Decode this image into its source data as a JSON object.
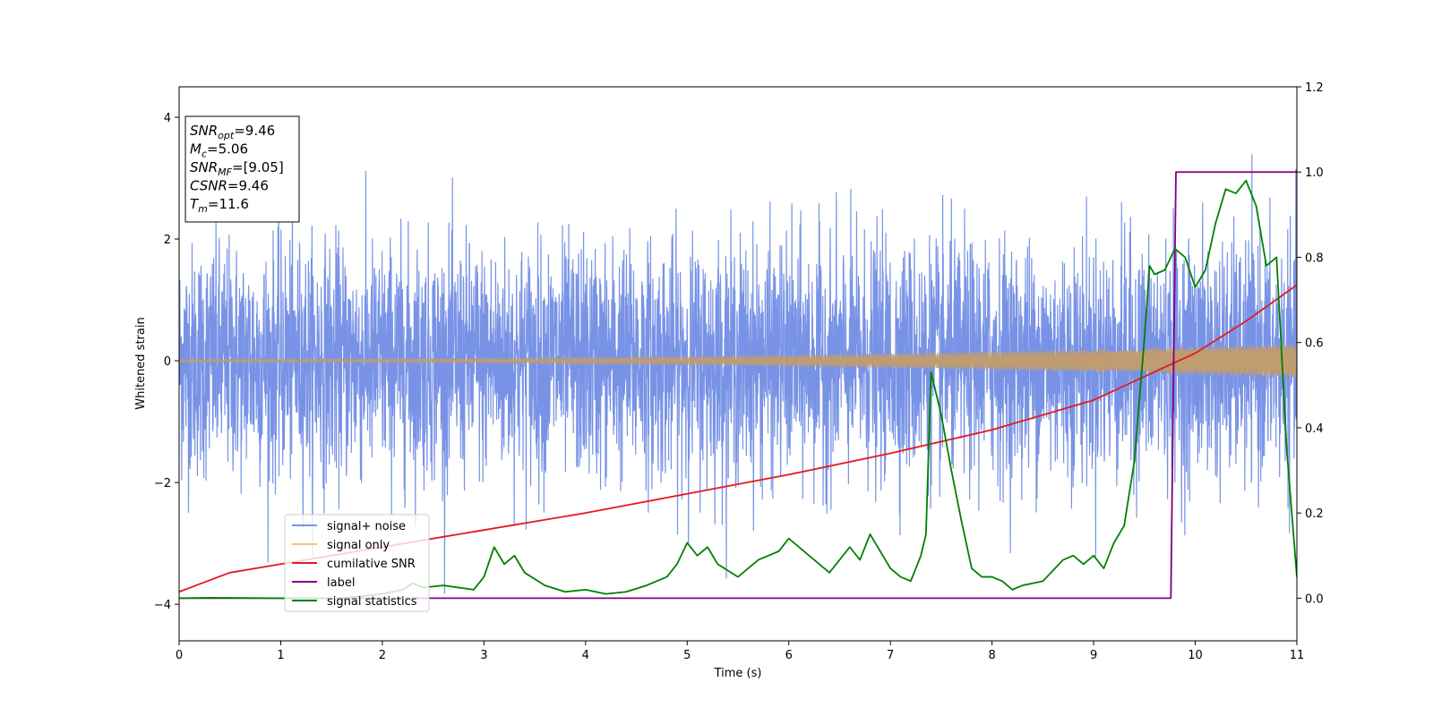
{
  "chart_data": {
    "type": "line",
    "xlabel": "Time (s)",
    "ylabel": "Whitened strain",
    "xlim": [
      0,
      11
    ],
    "ylim_left": [
      -4.6,
      4.5
    ],
    "ylim_right": [
      -0.1,
      1.2
    ],
    "x_ticks": [
      "0",
      "1",
      "2",
      "3",
      "4",
      "5",
      "6",
      "7",
      "8",
      "9",
      "10",
      "11"
    ],
    "y_left_ticks": [
      "−4",
      "−2",
      "0",
      "2",
      "4"
    ],
    "y_right_ticks": [
      "0.0",
      "0.2",
      "0.4",
      "0.6",
      "0.8",
      "1.0",
      "1.2"
    ],
    "legend_position": "lower-left",
    "annotation": [
      {
        "base": "SNR",
        "sub": "opt",
        "text": "=9.46"
      },
      {
        "base": "M",
        "sub": "c",
        "text": "=5.06"
      },
      {
        "base": "SNR",
        "sub": "MF",
        "text": "=[9.05]"
      },
      {
        "base": "CSNR",
        "sub": "",
        "text": "=9.46"
      },
      {
        "base": "T",
        "sub": "m",
        "text": "=11.6"
      }
    ],
    "series": [
      {
        "name": "signal+ noise",
        "color": "#7893e6",
        "axis": "left",
        "kind": "noise",
        "std": 0.95,
        "range": [
          -4.1,
          4.1
        ]
      },
      {
        "name": "signal only",
        "color": "#f5c46a",
        "axis": "left",
        "kind": "chirp",
        "amplitude_start": 0.02,
        "amplitude_end": 0.28
      },
      {
        "name": "cumilative SNR",
        "color": "#e41a1c",
        "axis": "right",
        "x": [
          0,
          0.5,
          1,
          2,
          3,
          4,
          5,
          6,
          7,
          8,
          9,
          10,
          10.5,
          11
        ],
        "y": [
          0.015,
          0.06,
          0.08,
          0.12,
          0.16,
          0.2,
          0.245,
          0.29,
          0.34,
          0.395,
          0.465,
          0.575,
          0.65,
          0.735
        ]
      },
      {
        "name": "label",
        "color": "#800080",
        "axis": "right",
        "x": [
          0,
          9.76,
          9.81,
          11
        ],
        "y": [
          0.0,
          0.0,
          1.0,
          1.0
        ]
      },
      {
        "name": "signal statistics",
        "color": "#008000",
        "axis": "right",
        "x": [
          0,
          0.3,
          1.0,
          1.6,
          2.0,
          2.2,
          2.3,
          2.4,
          2.6,
          2.9,
          3.0,
          3.1,
          3.2,
          3.3,
          3.4,
          3.6,
          3.8,
          4.0,
          4.2,
          4.4,
          4.6,
          4.8,
          4.9,
          5.0,
          5.1,
          5.2,
          5.3,
          5.5,
          5.7,
          5.9,
          6.0,
          6.2,
          6.4,
          6.6,
          6.7,
          6.8,
          6.9,
          7.0,
          7.1,
          7.2,
          7.3,
          7.35,
          7.4,
          7.45,
          7.5,
          7.6,
          7.7,
          7.8,
          7.9,
          8.0,
          8.1,
          8.2,
          8.3,
          8.5,
          8.7,
          8.8,
          8.9,
          9.0,
          9.1,
          9.2,
          9.3,
          9.4,
          9.5,
          9.55,
          9.6,
          9.7,
          9.8,
          9.9,
          10.0,
          10.1,
          10.2,
          10.3,
          10.4,
          10.5,
          10.6,
          10.7,
          10.8,
          10.9,
          11.0
        ],
        "y": [
          0.0,
          0.001,
          0.0,
          0.0,
          0.01,
          0.02,
          0.035,
          0.025,
          0.03,
          0.02,
          0.05,
          0.12,
          0.08,
          0.1,
          0.06,
          0.03,
          0.015,
          0.02,
          0.01,
          0.015,
          0.03,
          0.05,
          0.08,
          0.13,
          0.1,
          0.12,
          0.08,
          0.05,
          0.09,
          0.11,
          0.14,
          0.1,
          0.06,
          0.12,
          0.09,
          0.15,
          0.11,
          0.07,
          0.05,
          0.04,
          0.1,
          0.15,
          0.53,
          0.48,
          0.43,
          0.3,
          0.18,
          0.07,
          0.05,
          0.05,
          0.04,
          0.02,
          0.03,
          0.04,
          0.09,
          0.1,
          0.08,
          0.1,
          0.07,
          0.13,
          0.17,
          0.32,
          0.61,
          0.78,
          0.76,
          0.77,
          0.82,
          0.8,
          0.73,
          0.77,
          0.88,
          0.96,
          0.95,
          0.98,
          0.92,
          0.78,
          0.8,
          0.35,
          0.05
        ]
      }
    ]
  }
}
